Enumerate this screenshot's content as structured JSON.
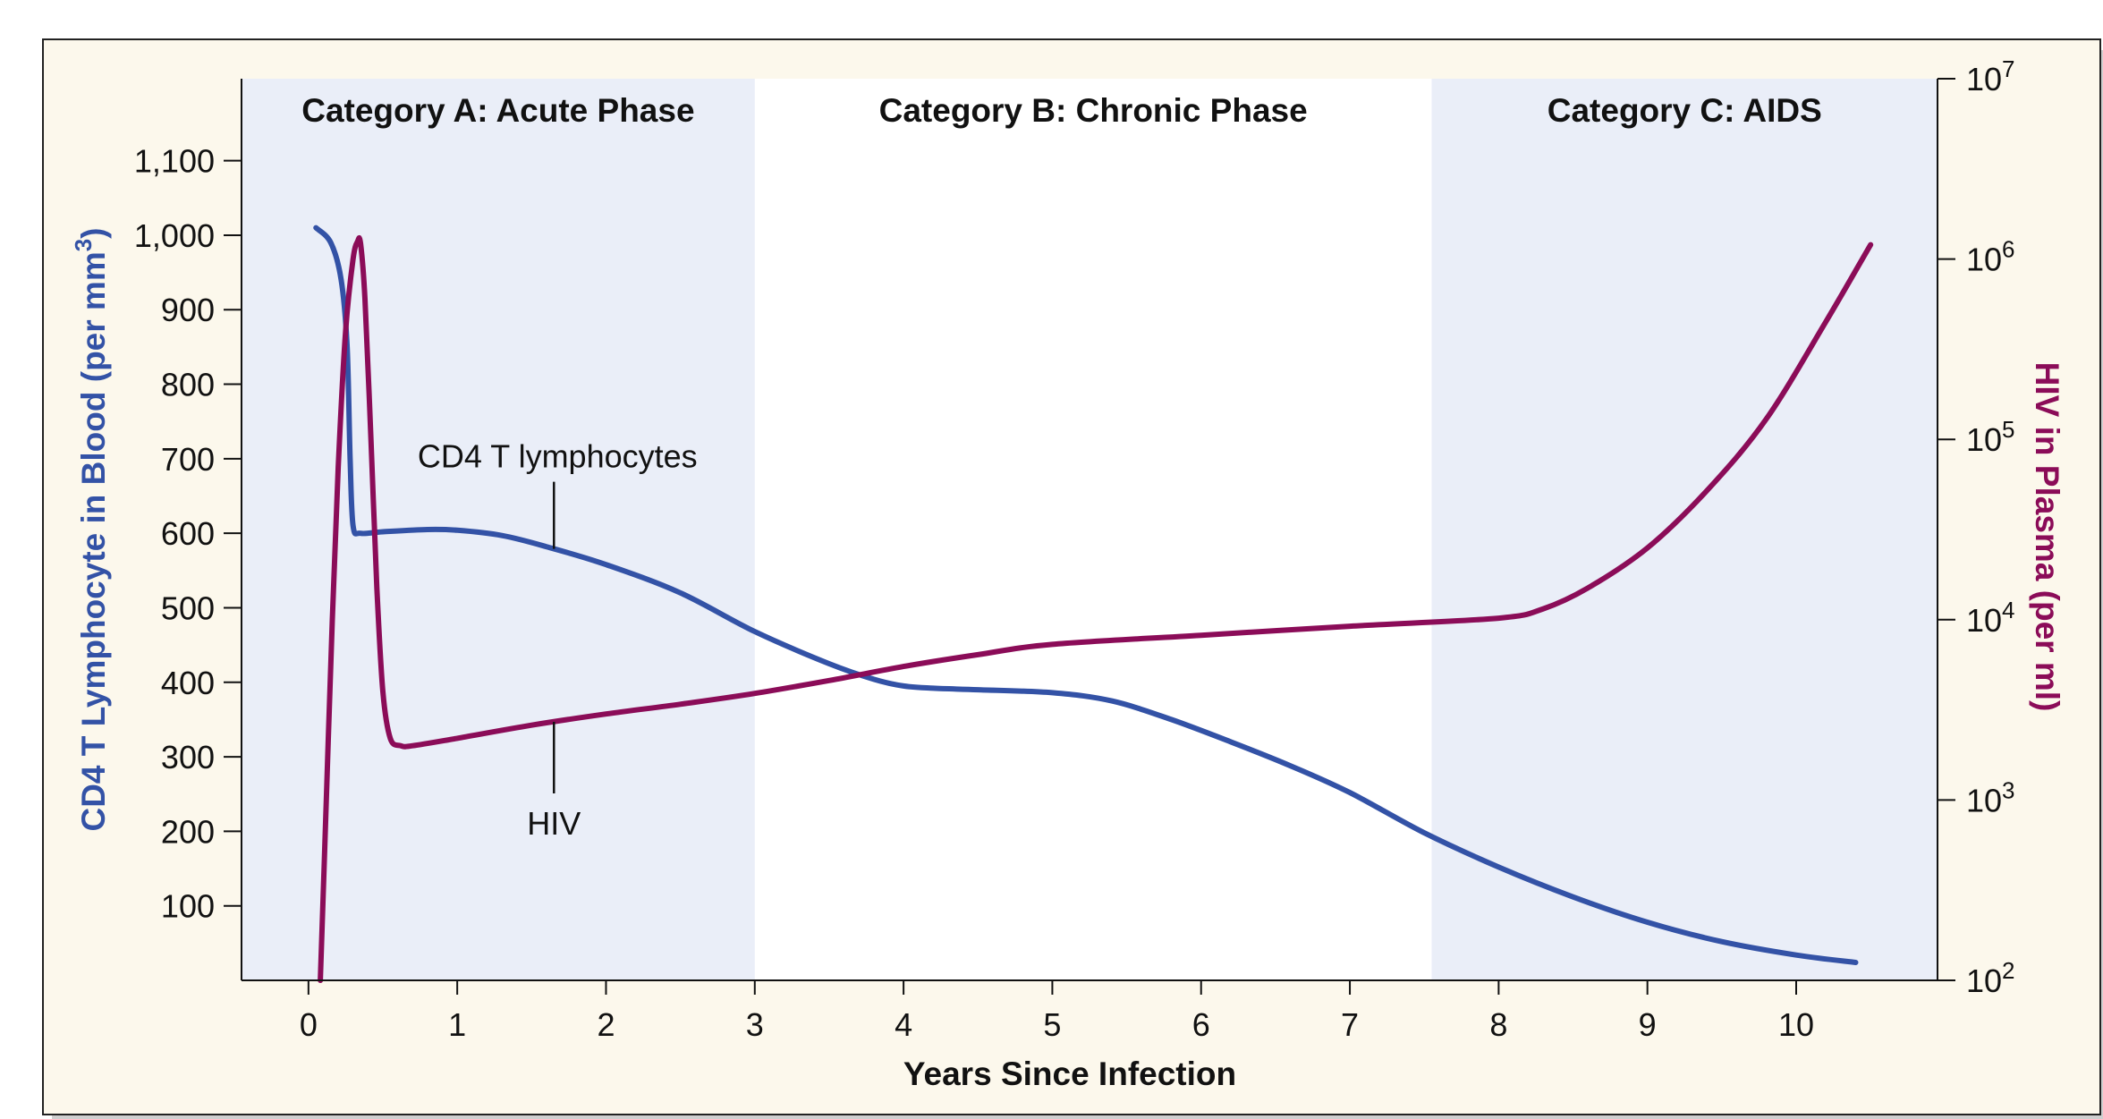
{
  "chart_data": {
    "type": "line",
    "xlabel": "Years Since Infection",
    "ylabel_left": "CD4 T Lymphocyte in Blood (per mm",
    "ylabel_left_sup": "3",
    "ylabel_left_close": ")",
    "ylabel_right": "HIV in Plasma (per ml)",
    "xlim": [
      -0.45,
      10.95
    ],
    "ylim_left": [
      0,
      1210
    ],
    "ylim_right": [
      100,
      10000000
    ],
    "right_axis_scale": "log",
    "x_ticks": [
      0,
      1,
      2,
      3,
      4,
      5,
      6,
      7,
      8,
      9,
      10
    ],
    "x_tick_labels": [
      "0",
      "1",
      "2",
      "3",
      "4",
      "5",
      "6",
      "7",
      "8",
      "9",
      "10"
    ],
    "y_left_ticks": [
      100,
      200,
      300,
      400,
      500,
      600,
      700,
      800,
      900,
      1000,
      1100
    ],
    "y_left_tick_labels": [
      "100",
      "200",
      "300",
      "400",
      "500",
      "600",
      "700",
      "800",
      "900",
      "1,000",
      "1,100"
    ],
    "y_right_ticks": [
      {
        "value": 100,
        "base": "10",
        "exp": "2"
      },
      {
        "value": 1000,
        "base": "10",
        "exp": "3"
      },
      {
        "value": 10000,
        "base": "10",
        "exp": "4"
      },
      {
        "value": 100000,
        "base": "10",
        "exp": "5"
      },
      {
        "value": 1000000,
        "base": "10",
        "exp": "6"
      },
      {
        "value": 10000000,
        "base": "10",
        "exp": "7"
      }
    ],
    "bands": [
      {
        "label": "Category A:  Acute Phase",
        "x_start": -0.45,
        "x_end": 3.0,
        "shaded": true
      },
      {
        "label": "Category B: Chronic Phase",
        "x_start": 3.0,
        "x_end": 7.55,
        "shaded": false
      },
      {
        "label": "Category C: AIDS",
        "x_start": 7.55,
        "x_end": 10.95,
        "shaded": true
      }
    ],
    "series": [
      {
        "name": "CD4 T lymphocytes",
        "axis": "left",
        "color": "#3352a6",
        "x": [
          0.05,
          0.15,
          0.22,
          0.26,
          0.28,
          0.3,
          0.35,
          0.5,
          0.8,
          1.0,
          1.3,
          1.6,
          2.0,
          2.5,
          3.0,
          3.5,
          3.8,
          4.0,
          4.2,
          4.5,
          5.0,
          5.4,
          5.8,
          6.2,
          6.6,
          7.0,
          7.5,
          8.0,
          8.5,
          9.0,
          9.5,
          10.0,
          10.4
        ],
        "y": [
          1010,
          990,
          940,
          850,
          700,
          610,
          600,
          602,
          605,
          604,
          597,
          582,
          558,
          520,
          468,
          425,
          404,
          395,
          392,
          390,
          386,
          375,
          350,
          320,
          288,
          252,
          198,
          152,
          112,
          78,
          52,
          34,
          24
        ]
      },
      {
        "name": "HIV",
        "axis": "right",
        "color": "#8b0c58",
        "x": [
          0.08,
          0.12,
          0.16,
          0.2,
          0.25,
          0.3,
          0.33,
          0.35,
          0.38,
          0.42,
          0.46,
          0.5,
          0.55,
          0.62,
          0.7,
          1.0,
          1.5,
          2.0,
          2.5,
          3.0,
          3.5,
          4.0,
          4.5,
          5.0,
          6.0,
          7.0,
          8.0,
          8.3,
          8.6,
          9.0,
          9.4,
          9.8,
          10.2,
          10.5
        ],
        "y": [
          100,
          1000,
          10000,
          70000,
          400000,
          1000000,
          1250000,
          1220000,
          600000,
          100000,
          15000,
          4000,
          2200,
          2000,
          2000,
          2200,
          2600,
          3000,
          3400,
          3900,
          4600,
          5500,
          6400,
          7300,
          8200,
          9200,
          10200,
          11500,
          15000,
          25000,
          52000,
          130000,
          450000,
          1200000
        ]
      }
    ],
    "annotations": [
      {
        "text": "CD4 T lymphocytes",
        "series": "CD4 T lymphocytes",
        "x": 1.65
      },
      {
        "text": "HIV",
        "series": "HIV",
        "x": 1.65
      }
    ]
  }
}
